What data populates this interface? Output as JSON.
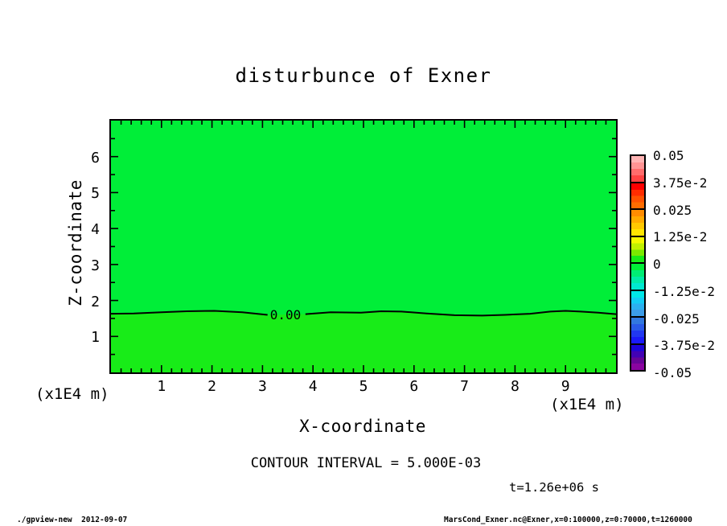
{
  "labels": {
    "title": "disturbunce of Exner",
    "x_axis": "X-coordinate",
    "y_axis": "Z-coordinate",
    "x_unit_left": "(x1E4 m)",
    "x_unit_right": "(x1E4 m)",
    "contour_interval": "CONTOUR INTERVAL = 5.000E-03",
    "time": "t=1.26e+06 s",
    "zero_contour": "0.00",
    "footer_left": "./gpview-new  2012-09-07",
    "footer_right": "MarsCond_Exner.nc@Exner,x=0:100000,z=0:70000,t=1260000"
  },
  "colorbar": {
    "labels": [
      "0.05",
      "3.75e-2",
      "0.025",
      "1.25e-2",
      "0",
      "-1.25e-2",
      "-0.025",
      "-3.75e-2",
      "-0.05"
    ],
    "segments": [
      [
        "#ffb4b4",
        "#ff9494",
        "#ff6c6c",
        "#ff4444"
      ],
      [
        "#ff0000",
        "#ff2d00",
        "#ff5200",
        "#ff6d00"
      ],
      [
        "#ff8c00",
        "#ffaa00",
        "#ffc800",
        "#ffe600"
      ],
      [
        "#f4f800",
        "#c0f000",
        "#7cea00",
        "#18ec18"
      ],
      [
        "#00ee38",
        "#00ec74",
        "#00eaa8",
        "#00e8d0"
      ],
      [
        "#00e8e8",
        "#14ccf4",
        "#2cb0f0",
        "#3c9ce8"
      ],
      [
        "#3278e0",
        "#2a5ae8",
        "#2138f0",
        "#1a1af8"
      ],
      [
        "#1c04d8",
        "#4202b4",
        "#680497",
        "#8a04a0"
      ]
    ]
  },
  "chart_data": {
    "type": "heatmap",
    "title": "disturbunce of Exner",
    "xlabel": "X-coordinate (x1E4 m)",
    "ylabel": "Z-coordinate (x1E4 m)",
    "xlim": [
      0,
      10
    ],
    "ylim": [
      0,
      7
    ],
    "x_major_ticks": [
      1,
      2,
      3,
      4,
      5,
      6,
      7,
      8,
      9
    ],
    "x_minor_step": 0.2,
    "y_major_ticks": [
      1,
      2,
      3,
      4,
      5,
      6
    ],
    "y_minor_step": 0.5,
    "colorbar_levels": [
      0.05,
      0.0375,
      0.025,
      0.0125,
      0,
      -0.0125,
      -0.025,
      -0.0375,
      -0.05
    ],
    "contour_interval": 0.005,
    "time_seconds": 1260000,
    "field_description": "Exner function disturbance is near zero over the whole domain; only the 0.00 contour appears, undulating around z = 1.6-1.7 x1E4 m",
    "region_colors": {
      "upper_region": "#00ee38",
      "lower_region": "#18ec18"
    },
    "zero_contour": {
      "label": "0.00",
      "label_x": 3.45,
      "label_z": 1.62,
      "segments": [
        [
          [
            0,
            1.63
          ],
          [
            0.45,
            1.64
          ],
          [
            1.0,
            1.67
          ],
          [
            1.5,
            1.7
          ],
          [
            2.05,
            1.71
          ],
          [
            2.6,
            1.67
          ],
          [
            3.1,
            1.6
          ]
        ],
        [
          [
            3.85,
            1.62
          ],
          [
            4.35,
            1.67
          ],
          [
            4.95,
            1.66
          ],
          [
            5.35,
            1.7
          ],
          [
            5.75,
            1.69
          ],
          [
            6.25,
            1.64
          ],
          [
            6.8,
            1.59
          ],
          [
            7.35,
            1.58
          ],
          [
            7.8,
            1.6
          ],
          [
            8.3,
            1.63
          ],
          [
            8.7,
            1.69
          ],
          [
            9.0,
            1.71
          ],
          [
            9.3,
            1.69
          ],
          [
            9.65,
            1.66
          ],
          [
            10.0,
            1.62
          ]
        ]
      ]
    }
  }
}
